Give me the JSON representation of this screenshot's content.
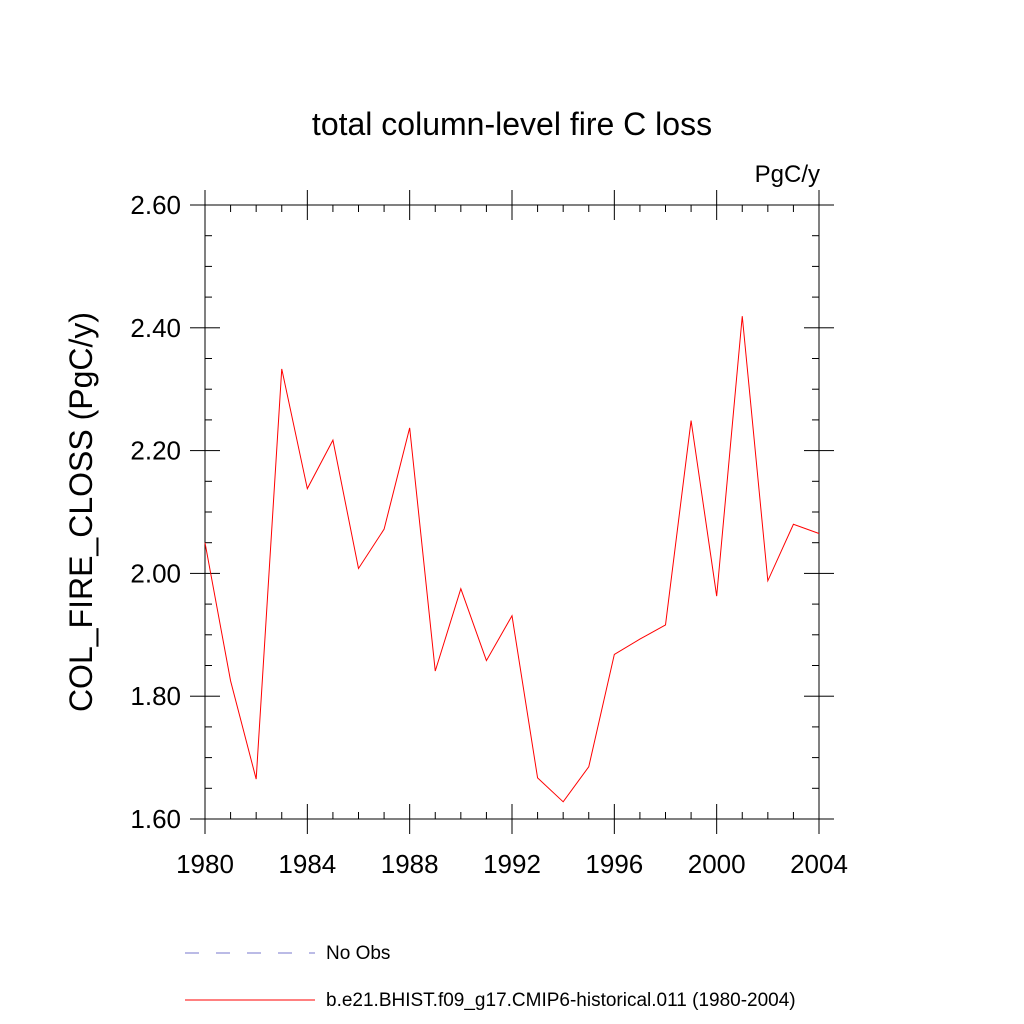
{
  "chart_data": {
    "type": "line",
    "title": "total column-level fire C loss",
    "units": "PgC/y",
    "xlabel": "",
    "ylabel": "COL_FIRE_CLOSS  (PgC/y)",
    "xlim": [
      1980,
      2004
    ],
    "ylim": [
      1.6,
      2.6
    ],
    "xticks": [
      "1980",
      "1984",
      "1988",
      "1992",
      "1996",
      "2000",
      "2004"
    ],
    "yticks": [
      "1.60",
      "1.80",
      "2.00",
      "2.20",
      "2.40",
      "2.60"
    ],
    "grid": false,
    "legend_position": "bottom",
    "series": [
      {
        "name": "b.e21.BHIST.f09_g17.CMIP6-historical.011 (1980-2004)",
        "color": "#ff0000",
        "style": "solid",
        "x": [
          1980,
          1981,
          1982,
          1983,
          1984,
          1985,
          1986,
          1987,
          1988,
          1989,
          1990,
          1991,
          1992,
          1993,
          1994,
          1995,
          1996,
          1997,
          1998,
          1999,
          2000,
          2001,
          2002,
          2003,
          2004
        ],
        "y": [
          2.05,
          1.825,
          1.665,
          2.333,
          2.138,
          2.217,
          2.008,
          2.072,
          2.237,
          1.841,
          1.975,
          1.858,
          1.931,
          1.667,
          1.628,
          1.685,
          1.868,
          1.893,
          1.916,
          2.249,
          1.963,
          2.419,
          1.988,
          2.08,
          2.065
        ]
      }
    ],
    "legend": [
      {
        "label": "No Obs",
        "color": "#7777cc",
        "style": "dashed"
      },
      {
        "label": "b.e21.BHIST.f09_g17.CMIP6-historical.011 (1980-2004)",
        "color": "#ff0000",
        "style": "solid"
      }
    ]
  }
}
